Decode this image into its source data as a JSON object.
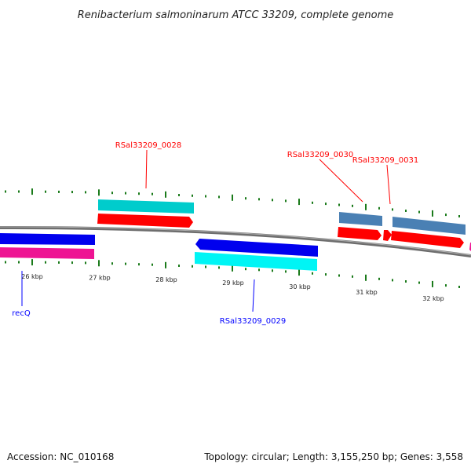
{
  "title": "Renibacterium salmoninarum ATCC 33209, complete genome",
  "footer": {
    "accession": "Accession: NC_010168",
    "summary": "Topology: circular; Length: 3,155,250 bp; Genes: 3,558"
  },
  "genes": {
    "recQ": "recQ",
    "g28": "RSal33209_0028",
    "g29": "RSal33209_0029",
    "g30": "RSal33209_0030",
    "g31": "RSal33209_0031"
  },
  "ticks": [
    "26 kbp",
    "27 kbp",
    "28 kbp",
    "29 kbp",
    "30 kbp",
    "31 kbp",
    "32 kbp"
  ],
  "colors": {
    "forward_label": "#ff0000",
    "reverse_label": "#0000ff",
    "tick": "#1a7a1a",
    "backbone": "#808080"
  }
}
